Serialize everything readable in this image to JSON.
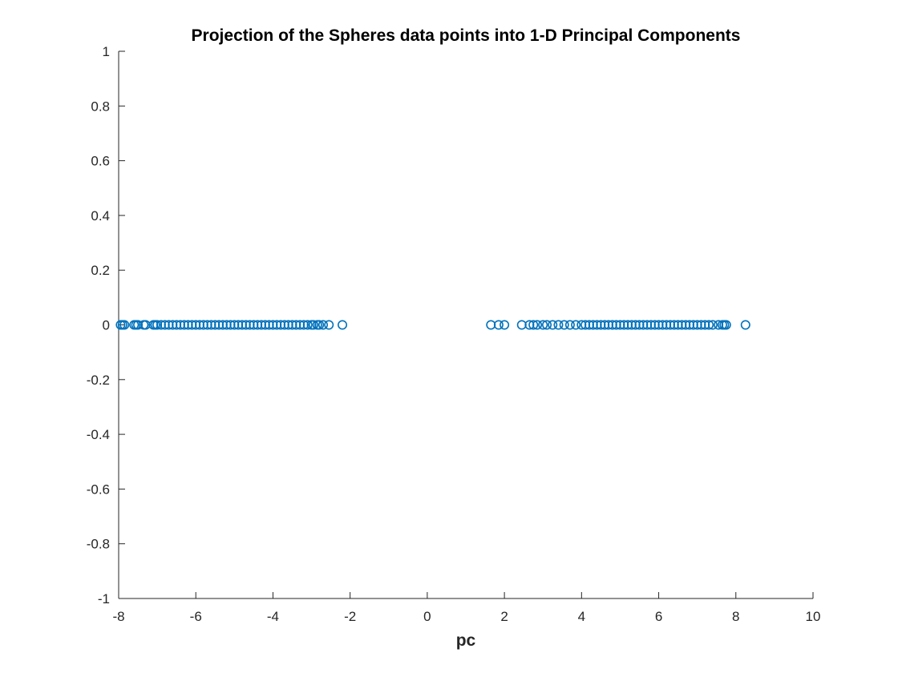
{
  "chart_data": {
    "type": "scatter",
    "title": "Projection of the Spheres data points into 1-D Principal Components",
    "xlabel": "pc",
    "ylabel": "",
    "xlim": [
      -8,
      10
    ],
    "ylim": [
      -1,
      1
    ],
    "x_ticks": [
      "-8",
      "-6",
      "-4",
      "-2",
      "0",
      "2",
      "4",
      "6",
      "8",
      "10"
    ],
    "y_ticks": [
      "1",
      "0.8",
      "0.6",
      "0.4",
      "0.2",
      "0",
      "-0.2",
      "-0.4",
      "-0.6",
      "-0.8",
      "-1"
    ],
    "grid": false,
    "marker": "open-circle",
    "color": "#0072BD",
    "series": [
      {
        "x": [
          -7.95,
          -7.9,
          -7.85,
          -7.6,
          -7.55,
          -7.5,
          -7.35,
          -7.3,
          -7.1,
          -7.05,
          -7.0,
          -6.9,
          -6.8,
          -6.7,
          -6.6,
          -6.5,
          -6.4,
          -6.3,
          -6.2,
          -6.1,
          -6.0,
          -5.9,
          -5.8,
          -5.7,
          -5.6,
          -5.5,
          -5.4,
          -5.3,
          -5.2,
          -5.1,
          -5.0,
          -4.9,
          -4.8,
          -4.7,
          -4.6,
          -4.5,
          -4.4,
          -4.3,
          -4.2,
          -4.1,
          -4.0,
          -3.9,
          -3.8,
          -3.7,
          -3.6,
          -3.5,
          -3.4,
          -3.3,
          -3.2,
          -3.1,
          -3.0,
          -2.95,
          -2.85,
          -2.8,
          -2.7,
          -2.55,
          -2.2
        ],
        "y": [
          0,
          0,
          0,
          0,
          0,
          0,
          0,
          0,
          0,
          0,
          0,
          0,
          0,
          0,
          0,
          0,
          0,
          0,
          0,
          0,
          0,
          0,
          0,
          0,
          0,
          0,
          0,
          0,
          0,
          0,
          0,
          0,
          0,
          0,
          0,
          0,
          0,
          0,
          0,
          0,
          0,
          0,
          0,
          0,
          0,
          0,
          0,
          0,
          0,
          0,
          0,
          0,
          0,
          0,
          0,
          0,
          0
        ]
      },
      {
        "x": [
          1.65,
          1.85,
          2.0,
          2.45,
          2.65,
          2.75,
          2.85,
          3.0,
          3.1,
          3.25,
          3.4,
          3.55,
          3.7,
          3.85,
          4.0,
          4.1,
          4.2,
          4.3,
          4.4,
          4.5,
          4.6,
          4.7,
          4.8,
          4.9,
          5.0,
          5.1,
          5.2,
          5.3,
          5.4,
          5.5,
          5.6,
          5.7,
          5.8,
          5.9,
          6.0,
          6.1,
          6.2,
          6.3,
          6.4,
          6.5,
          6.6,
          6.7,
          6.8,
          6.9,
          7.0,
          7.1,
          7.2,
          7.3,
          7.4,
          7.55,
          7.65,
          7.7,
          7.75,
          8.25
        ],
        "y": [
          0,
          0,
          0,
          0,
          0,
          0,
          0,
          0,
          0,
          0,
          0,
          0,
          0,
          0,
          0,
          0,
          0,
          0,
          0,
          0,
          0,
          0,
          0,
          0,
          0,
          0,
          0,
          0,
          0,
          0,
          0,
          0,
          0,
          0,
          0,
          0,
          0,
          0,
          0,
          0,
          0,
          0,
          0,
          0,
          0,
          0,
          0,
          0,
          0,
          0,
          0,
          0,
          0,
          0
        ]
      }
    ]
  }
}
